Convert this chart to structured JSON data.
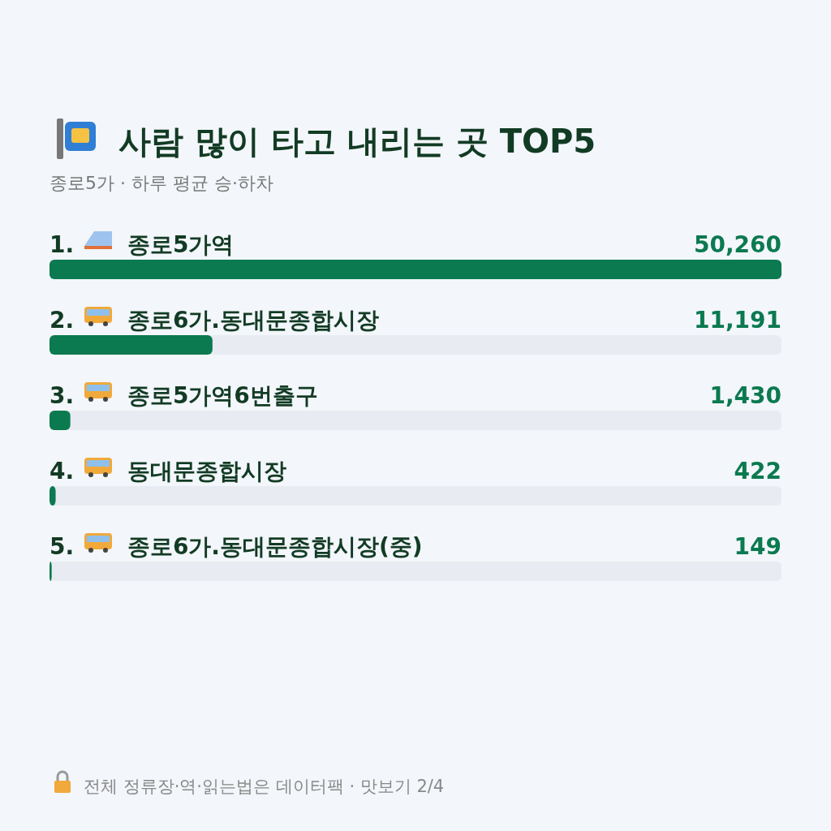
{
  "chart_data": {
    "type": "bar",
    "orientation": "horizontal",
    "title": "사람 많이 타고 내리는 곳 TOP5",
    "subtitle": "종로5가 · 하루 평균 승·하차",
    "categories": [
      "1. 종로5가역",
      "2. 종로6가.동대문종합시장",
      "3. 종로5가역6번출구",
      "4. 동대문종합시장",
      "5. 종로6가.동대문종합시장(중)"
    ],
    "values": [
      50260,
      11191,
      1430,
      422,
      149
    ],
    "value_labels": [
      "50,260",
      "11,191",
      "1,430",
      "422",
      "149"
    ],
    "color": "#0b7a50",
    "annotations": [
      "전체 정류장·역·읽는법은 데이터팩 · 맛보기 2/4"
    ]
  }
}
